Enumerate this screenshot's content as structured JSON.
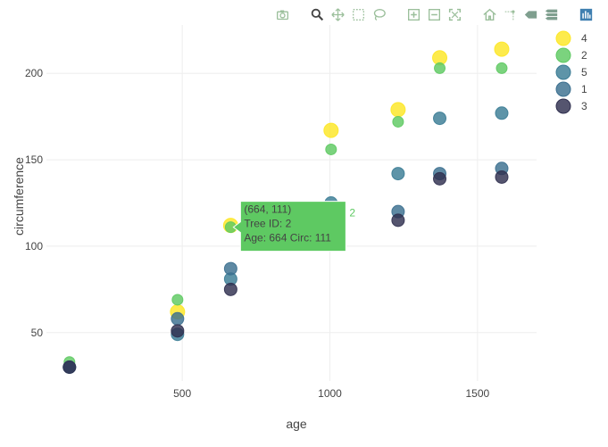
{
  "modebar": {
    "buttons": [
      {
        "icon": "camera-icon"
      },
      {
        "icon": "zoom-icon"
      },
      {
        "icon": "pan-icon"
      },
      {
        "icon": "box-select-icon"
      },
      {
        "icon": "lasso-select-icon"
      },
      {
        "icon": "zoom-in-icon"
      },
      {
        "icon": "zoom-out-icon"
      },
      {
        "icon": "autoscale-icon"
      },
      {
        "icon": "home-icon"
      },
      {
        "icon": "spike-lines-icon"
      },
      {
        "icon": "hover-closest-icon"
      },
      {
        "icon": "hover-compare-icon"
      },
      {
        "icon": "plotly-logo-icon"
      }
    ],
    "colors": {
      "inactive": "#9bbf9b",
      "active": "#444444",
      "logo": "#3f7fb0"
    }
  },
  "chart_data": {
    "type": "scatter",
    "xlabel": "age",
    "ylabel": "circumference",
    "xlim": [
      40,
      1700
    ],
    "ylim": [
      22,
      228
    ],
    "xticks": [
      500,
      1000,
      1500
    ],
    "yticks": [
      50,
      100,
      150,
      200
    ],
    "grid": true,
    "legend": {
      "position": "top-right"
    },
    "series": [
      {
        "name": "4",
        "color": "#fde725",
        "size": 8,
        "x": [
          484,
          664,
          1004,
          1231,
          1372,
          1582
        ],
        "y": [
          62,
          112,
          167,
          179,
          209,
          214
        ]
      },
      {
        "name": "2",
        "color": "#5ec962",
        "size": 6,
        "x": [
          118,
          484,
          664,
          1004,
          1231,
          1372,
          1582
        ],
        "y": [
          33,
          69,
          111,
          156,
          172,
          203,
          203
        ]
      },
      {
        "name": "5",
        "color": "#3b7c95",
        "size": 7,
        "x": [
          118,
          484,
          664,
          1004,
          1231,
          1372,
          1582
        ],
        "y": [
          30,
          49,
          81,
          125,
          142,
          174,
          177
        ]
      },
      {
        "name": "1",
        "color": "#3b6f8f",
        "size": 7,
        "x": [
          118,
          484,
          664,
          1004,
          1231,
          1372,
          1582
        ],
        "y": [
          30,
          58,
          87,
          115,
          120,
          142,
          145
        ]
      },
      {
        "name": "3",
        "color": "#30304f",
        "size": 7,
        "x": [
          118,
          484,
          664,
          1004,
          1231,
          1372,
          1582
        ],
        "y": [
          30,
          51,
          75,
          108,
          115,
          139,
          140
        ]
      }
    ],
    "hover": {
      "series": "2",
      "x": 664,
      "y": 111,
      "lines": [
        "(664, 111)",
        "Tree ID:  2",
        "Age:  664 Circ:  111"
      ],
      "trace_label": "2",
      "color": "#5ec962"
    }
  }
}
